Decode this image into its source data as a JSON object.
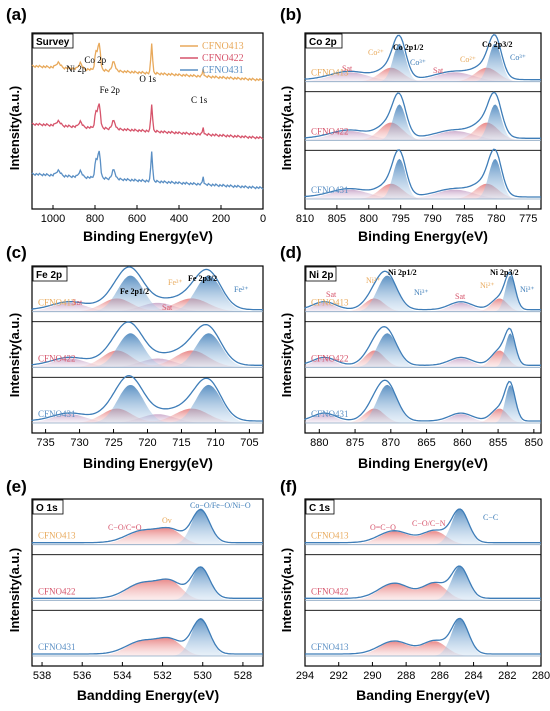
{
  "chart_data": [
    {
      "type": "area",
      "panel_label": "(a)",
      "box_title": "Survey",
      "xlabel": "Binding Energy(eV)",
      "ylabel": "Intensity(a.u.)",
      "xlim": [
        1100,
        0
      ],
      "xticks": [
        "1000",
        "800",
        "600",
        "400",
        "200",
        "0"
      ],
      "peak_labels": [
        {
          "text": "Ni 2p",
          "x": 870
        },
        {
          "text": "Co 2p",
          "x": 780
        },
        {
          "text": "Fe 2p",
          "x": 711
        },
        {
          "text": "O 1s",
          "x": 530
        },
        {
          "text": "C 1s",
          "x": 285
        }
      ],
      "series": [
        {
          "name": "CFNO413",
          "color": "#E8A95B"
        },
        {
          "name": "CFNO422",
          "color": "#D6546B"
        },
        {
          "name": "CFNO431",
          "color": "#5A8FC4"
        }
      ]
    },
    {
      "type": "area",
      "panel_label": "(b)",
      "box_title": "Co 2p",
      "xlabel": "Binding Energy(eV)",
      "ylabel": "Intensity(a.u.)",
      "xlim": [
        810,
        773
      ],
      "xticks": [
        "810",
        "805",
        "800",
        "795",
        "790",
        "785",
        "780",
        "775"
      ],
      "sample_labels": [
        "CFNO413",
        "CFNO422",
        "CFNO431"
      ],
      "annotations": [
        "Sat",
        "Co²⁺",
        "Co 2p1/2",
        "Co³⁺",
        "Sat",
        "Co²⁺",
        "Co 2p3/2",
        "Co³⁺"
      ],
      "components": {
        "red": [
          {
            "center": 796.5,
            "width": 1.8
          },
          {
            "center": 781.5,
            "width": 1.8
          }
        ],
        "blue": [
          {
            "center": 795.2,
            "width": 1.0
          },
          {
            "center": 780.2,
            "width": 1.0
          }
        ],
        "sat": [
          {
            "center": 803,
            "width": 3
          },
          {
            "center": 786.5,
            "width": 3
          }
        ]
      }
    },
    {
      "type": "area",
      "panel_label": "(c)",
      "box_title": "Fe 2p",
      "xlabel": "Binding Energy(eV)",
      "ylabel": "Intensity(a.u.)",
      "xlim": [
        737,
        703
      ],
      "xticks": [
        "735",
        "730",
        "725",
        "720",
        "715",
        "710",
        "705"
      ],
      "sample_labels": [
        "CFNO413",
        "CFNO422",
        "CFNO431"
      ],
      "annotations": [
        "Sat",
        "Fe 2p1/2",
        "Fe³⁺",
        "Fe 2p3/2",
        "Fe²⁺",
        "Sat"
      ],
      "components": {
        "red": [
          {
            "center": 713.5,
            "width": 2.5
          },
          {
            "center": 724.5,
            "width": 2.2
          }
        ],
        "blue": [
          {
            "center": 711,
            "width": 1.9
          },
          {
            "center": 722.5,
            "width": 1.9
          }
        ],
        "sat": [
          {
            "center": 718.5,
            "width": 2.5
          },
          {
            "center": 731.5,
            "width": 2.5
          }
        ]
      }
    },
    {
      "type": "area",
      "panel_label": "(d)",
      "box_title": "Ni 2p",
      "xlabel": "Binding Energy(eV)",
      "ylabel": "Intensity(a.u.)",
      "xlim": [
        882,
        849
      ],
      "xticks": [
        "880",
        "875",
        "870",
        "865",
        "860",
        "855",
        "850"
      ],
      "sample_labels": [
        "CFNO413",
        "CFNO422",
        "CFNO431"
      ],
      "annotations": [
        "Sat",
        "Ni²⁺",
        "Ni 2p1/2",
        "Ni³⁺",
        "Sat",
        "Ni²⁺",
        "Ni 2p3/2",
        "Ni³⁺"
      ],
      "components": {
        "red": [
          {
            "center": 854.8,
            "width": 1.1
          },
          {
            "center": 872.3,
            "width": 1.4
          }
        ],
        "blue": [
          {
            "center": 853.3,
            "width": 0.7
          },
          {
            "center": 870.5,
            "width": 1.4
          }
        ],
        "sat": [
          {
            "center": 860.2,
            "width": 1.6
          },
          {
            "center": 879.3,
            "width": 1.6
          }
        ]
      }
    },
    {
      "type": "area",
      "panel_label": "(e)",
      "box_title": "O 1s",
      "xlabel": "Bandding Energy(eV)",
      "ylabel": "Intensity(a.u.)",
      "xlim": [
        538.5,
        527
      ],
      "xticks": [
        "538",
        "536",
        "534",
        "532",
        "530",
        "528"
      ],
      "sample_labels": [
        "CFNO413",
        "CFNO422",
        "CFNO431"
      ],
      "annotations": [
        "Co−O/Fe−O/Ni−O",
        "C−O/C=O",
        "Ov"
      ],
      "components": {
        "blue": [
          {
            "center": 530.1,
            "width": 0.45
          }
        ],
        "red": [
          {
            "center": 531.6,
            "width": 0.6
          },
          {
            "center": 533.0,
            "width": 0.8
          }
        ]
      }
    },
    {
      "type": "area",
      "panel_label": "(f)",
      "box_title": "C 1s",
      "xlabel": "Banding Energy(eV)",
      "ylabel": "Intensity(a.u.)",
      "xlim": [
        294,
        280
      ],
      "xticks": [
        "294",
        "292",
        "290",
        "288",
        "286",
        "284",
        "282",
        "280"
      ],
      "sample_labels": [
        "CFNO413",
        "CFNO422",
        "CFNO413"
      ],
      "annotations": [
        "C−C",
        "O=C−O",
        "C−O/C−N"
      ],
      "components": {
        "blue": [
          {
            "center": 284.8,
            "width": 0.5
          }
        ],
        "red": [
          {
            "center": 286.3,
            "width": 0.7
          },
          {
            "center": 288.7,
            "width": 0.9
          }
        ]
      }
    }
  ]
}
